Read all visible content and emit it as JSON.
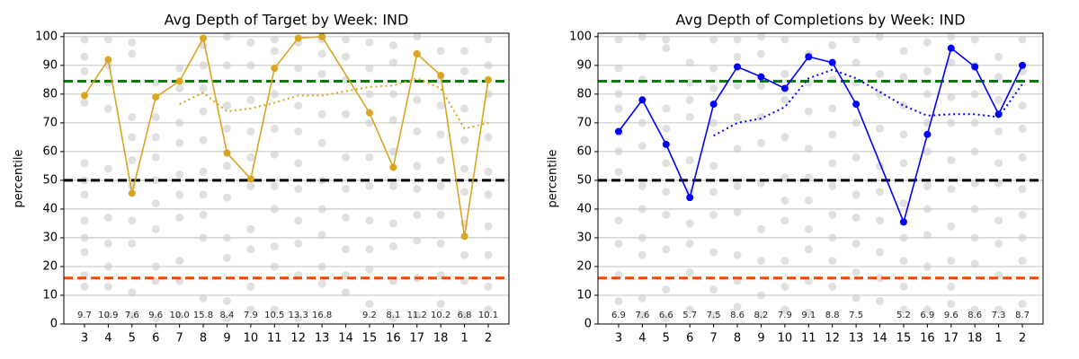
{
  "chart_data": [
    {
      "type": "line",
      "title": "Avg Depth of Target by Week: IND",
      "ylabel": "percentile",
      "categories": [
        "3",
        "4",
        "5",
        "6",
        "7",
        "8",
        "9",
        "10",
        "11",
        "12",
        "13",
        "14",
        "15",
        "16",
        "17",
        "18",
        "1",
        "2"
      ],
      "ylim": [
        0,
        101.2
      ],
      "yticks": [
        0,
        10,
        20,
        30,
        40,
        50,
        60,
        70,
        80,
        90,
        100
      ],
      "grid": true,
      "points": [
        [
          99,
          93,
          88,
          77,
          56,
          50,
          45,
          36,
          30,
          25,
          17,
          13
        ],
        [
          99,
          90,
          84,
          75,
          54,
          37,
          28,
          20,
          13,
          3
        ],
        [
          98,
          94,
          72,
          65,
          57,
          48,
          36,
          28,
          11,
          3
        ],
        [
          84,
          72,
          65,
          58,
          50,
          42,
          33,
          20,
          15,
          2
        ],
        [
          89,
          82,
          70,
          63,
          52,
          45,
          37,
          22,
          15,
          3
        ],
        [
          97,
          90,
          82,
          74,
          64,
          53,
          45,
          38,
          30,
          9
        ],
        [
          100,
          90,
          76,
          68,
          55,
          44,
          30,
          23,
          8,
          2
        ],
        [
          98,
          90,
          78,
          67,
          58,
          48,
          33,
          26,
          13,
          5
        ],
        [
          99,
          95,
          80,
          68,
          59,
          48,
          40,
          27,
          20,
          5
        ],
        [
          98,
          89,
          76,
          67,
          56,
          47,
          36,
          28,
          17,
          2
        ],
        [
          99,
          94,
          87,
          73,
          63,
          50,
          40,
          31,
          20,
          14
        ],
        [
          99,
          93,
          85,
          73,
          58,
          47,
          37,
          26,
          17,
          11
        ],
        [
          98,
          89,
          80,
          70,
          58,
          48,
          36,
          26,
          19,
          7
        ],
        [
          97,
          91,
          80,
          71,
          60,
          48,
          35,
          27,
          15,
          2
        ],
        [
          100,
          94,
          78,
          67,
          55,
          47,
          38,
          29,
          16,
          3
        ],
        [
          95,
          85,
          76,
          66,
          57,
          48,
          38,
          28,
          17,
          7
        ],
        [
          95,
          88,
          75,
          64,
          54,
          46,
          35,
          24,
          15,
          3
        ],
        [
          99,
          90,
          80,
          65,
          53,
          45,
          34,
          24,
          13,
          5
        ]
      ],
      "points_color": "#cccccc",
      "hlines": [
        {
          "value": 84.5,
          "color": "#008000"
        },
        {
          "value": 50,
          "color": "#000000"
        },
        {
          "value": 16,
          "color": "#ff4500"
        }
      ],
      "series": [
        {
          "color": "#daa520",
          "style": "solid",
          "marker": true,
          "x": [
            "3",
            "4",
            "5",
            "6",
            "7",
            "8",
            "9",
            "10",
            "11",
            "12",
            "13",
            "15",
            "16",
            "17",
            "18",
            "1",
            "2"
          ],
          "values": [
            79.5,
            92,
            45.5,
            79,
            84.5,
            99.5,
            59.5,
            50.5,
            89,
            99.5,
            100,
            73.5,
            54.5,
            94,
            86.5,
            30.5,
            85
          ]
        },
        {
          "color": "#daa520",
          "style": "dotted",
          "marker": false,
          "x": [
            "7",
            "8",
            "9",
            "10",
            "11",
            "12",
            "13",
            "15",
            "16",
            "17",
            "18",
            "1",
            "2"
          ],
          "values": [
            76.5,
            80.5,
            74,
            75,
            77,
            79.5,
            79.5,
            82.5,
            83,
            85.5,
            82,
            68,
            70
          ]
        }
      ],
      "annotations": [
        "9.7",
        "10.9",
        "7.6",
        "9.6",
        "10.0",
        "15.8",
        "8.4",
        "7.9",
        "10.5",
        "13.3",
        "16.8",
        null,
        "9.2",
        "8.1",
        "11.2",
        "10.2",
        "6.8",
        "10.1"
      ]
    },
    {
      "type": "line",
      "title": "Avg Depth of Completions by Week: IND",
      "ylabel": "percentile",
      "categories": [
        "3",
        "4",
        "5",
        "6",
        "7",
        "8",
        "9",
        "10",
        "11",
        "12",
        "13",
        "14",
        "15",
        "16",
        "17",
        "18",
        "1",
        "2"
      ],
      "ylim": [
        0,
        101.2
      ],
      "yticks": [
        0,
        10,
        20,
        30,
        40,
        50,
        60,
        70,
        80,
        90,
        100
      ],
      "grid": true,
      "points": [
        [
          99,
          89,
          80,
          75,
          60,
          53,
          36,
          28,
          17,
          8
        ],
        [
          100,
          85,
          70,
          62,
          48,
          40,
          30,
          24,
          9,
          3
        ],
        [
          99,
          96,
          75,
          68,
          56,
          46,
          38,
          26,
          12,
          2
        ],
        [
          91,
          84,
          78,
          72,
          57,
          46,
          35,
          28,
          18,
          5
        ],
        [
          99,
          89,
          82,
          70,
          55,
          46,
          38,
          25,
          12,
          3
        ],
        [
          99,
          93,
          83,
          72,
          61,
          48,
          39,
          24,
          15,
          6
        ],
        [
          100,
          94,
          83,
          72,
          63,
          49,
          33,
          22,
          10,
          3
        ],
        [
          99,
          87,
          78,
          65,
          51,
          43,
          36,
          22,
          13,
          5
        ],
        [
          94,
          84,
          74,
          61,
          51,
          43,
          33,
          26,
          15,
          4
        ],
        [
          97,
          85,
          75,
          66,
          56,
          48,
          38,
          30,
          22,
          13
        ],
        [
          99,
          91,
          84,
          70,
          58,
          45,
          37,
          28,
          18,
          9
        ],
        [
          100,
          87,
          80,
          68,
          55,
          46,
          36,
          25,
          16,
          8
        ],
        [
          95,
          86,
          76,
          66,
          56,
          42,
          30,
          22,
          13,
          5
        ],
        [
          98,
          88,
          80,
          70,
          60,
          48,
          40,
          31,
          20,
          5
        ],
        [
          100,
          91,
          79,
          70,
          57,
          47,
          34,
          22,
          13,
          7
        ],
        [
          99,
          90,
          80,
          70,
          60,
          49,
          40,
          30,
          21,
          5
        ],
        [
          93,
          86,
          78,
          67,
          56,
          49,
          36,
          28,
          17,
          5
        ],
        [
          99,
          88,
          76,
          68,
          58,
          47,
          38,
          30,
          22,
          7
        ]
      ],
      "points_color": "#cccccc",
      "hlines": [
        {
          "value": 84.5,
          "color": "#008000"
        },
        {
          "value": 50,
          "color": "#000000"
        },
        {
          "value": 16,
          "color": "#ff4500"
        }
      ],
      "series": [
        {
          "color": "#0000ff",
          "style": "solid",
          "marker": true,
          "x": [
            "3",
            "4",
            "5",
            "6",
            "7",
            "8",
            "9",
            "10",
            "11",
            "12",
            "13",
            "15",
            "16",
            "17",
            "18",
            "1",
            "2"
          ],
          "values": [
            67,
            78,
            62.5,
            44,
            76.5,
            89.5,
            86,
            82,
            93,
            91,
            76.5,
            35.5,
            66,
            96,
            89.5,
            73,
            90
          ]
        },
        {
          "color": "#0000ff",
          "style": "dotted",
          "marker": false,
          "x": [
            "7",
            "8",
            "9",
            "10",
            "11",
            "12",
            "13",
            "15",
            "16",
            "17",
            "18",
            "1",
            "2"
          ],
          "values": [
            65.5,
            70,
            71.5,
            75.5,
            85.5,
            88.5,
            85.5,
            76,
            72.5,
            73,
            73,
            72,
            83.5
          ]
        }
      ],
      "annotations": [
        "6.9",
        "7.6",
        "6.6",
        "5.7",
        "7.5",
        "8.6",
        "8.2",
        "7.9",
        "9.1",
        "8.8",
        "7.5",
        null,
        "5.2",
        "6.9",
        "9.6",
        "8.6",
        "7.3",
        "8.7"
      ]
    }
  ]
}
